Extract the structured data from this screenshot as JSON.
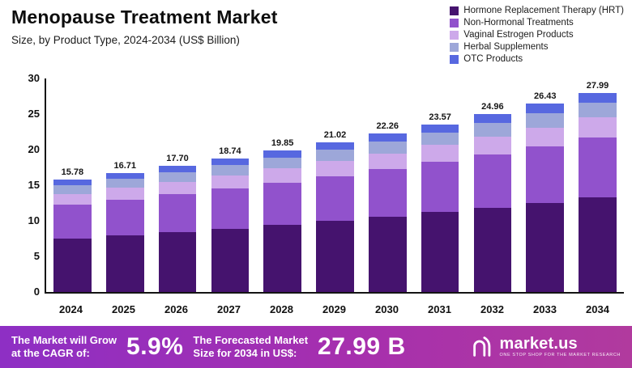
{
  "header": {
    "title": "Menopause Treatment Market",
    "subtitle": "Size, by Product Type, 2024-2034 (US$ Billion)"
  },
  "chart_data": {
    "type": "bar",
    "stacked": true,
    "title": "Menopause Treatment Market",
    "xlabel": "",
    "ylabel": "US$ Billion",
    "ylim": [
      0,
      30
    ],
    "yticks": [
      0,
      5,
      10,
      15,
      20,
      25,
      30
    ],
    "legend_position": "top-right",
    "grid": false,
    "categories": [
      "2024",
      "2025",
      "2026",
      "2027",
      "2028",
      "2029",
      "2030",
      "2031",
      "2032",
      "2033",
      "2034"
    ],
    "totals": [
      15.78,
      16.71,
      17.7,
      18.74,
      19.85,
      21.02,
      22.26,
      23.57,
      24.96,
      26.43,
      27.99
    ],
    "series": [
      {
        "name": "Hormone Replacement Therapy (HRT)",
        "color": "#45136e",
        "values": [
          7.5,
          7.94,
          8.41,
          8.9,
          9.43,
          9.98,
          10.57,
          11.2,
          11.86,
          12.55,
          13.3
        ]
      },
      {
        "name": "Non-Hormonal Treatments",
        "color": "#9152cc",
        "values": [
          4.73,
          5.01,
          5.31,
          5.62,
          5.96,
          6.31,
          6.68,
          7.07,
          7.49,
          7.93,
          8.4
        ]
      },
      {
        "name": "Vaginal Estrogen Products",
        "color": "#cda9ea",
        "values": [
          1.58,
          1.67,
          1.77,
          1.87,
          1.99,
          2.1,
          2.23,
          2.36,
          2.5,
          2.64,
          2.8
        ]
      },
      {
        "name": "Herbal Supplements",
        "color": "#9da7d9",
        "values": [
          1.18,
          1.25,
          1.33,
          1.41,
          1.49,
          1.58,
          1.67,
          1.77,
          1.87,
          1.98,
          2.1
        ]
      },
      {
        "name": "OTC Products",
        "color": "#5768e0",
        "values": [
          0.79,
          0.84,
          0.88,
          0.94,
          0.98,
          1.05,
          1.11,
          1.17,
          1.24,
          1.33,
          1.39
        ]
      }
    ]
  },
  "banner": {
    "cagr_label_line1": "The Market will Grow",
    "cagr_label_line2": "at the CAGR of:",
    "cagr_value": "5.9%",
    "forecast_label_line1": "The Forecasted Market",
    "forecast_label_line2": "Size for 2034 in US$:",
    "forecast_value": "27.99 B",
    "brand_name": "market.us",
    "brand_tagline": "ONE STOP SHOP FOR THE MARKET RESEARCH"
  }
}
